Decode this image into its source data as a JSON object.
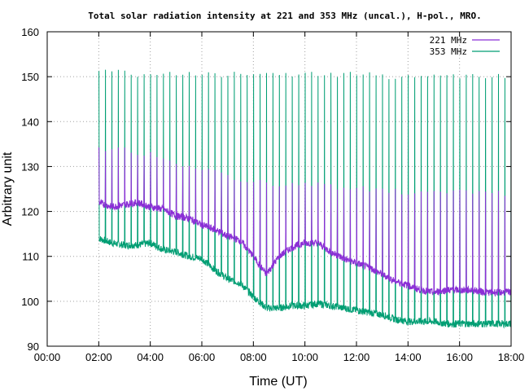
{
  "chart_data": {
    "type": "line",
    "title": "Total solar radiation intensity at 221 and 353 MHz (uncal.), H-pol., MRO.",
    "xlabel": "Time (UT)",
    "ylabel": "Arbitrary unit",
    "xlim": [
      0,
      18
    ],
    "ylim": [
      90,
      160
    ],
    "xticks": [
      0,
      2,
      4,
      6,
      8,
      10,
      12,
      14,
      16,
      18
    ],
    "xtick_labels": [
      "00:00",
      "02:00",
      "04:00",
      "06:00",
      "08:00",
      "10:00",
      "12:00",
      "14:00",
      "16:00",
      "18:00"
    ],
    "yticks": [
      90,
      100,
      110,
      120,
      130,
      140,
      150,
      160
    ],
    "ytick_labels": [
      "90",
      "100",
      "110",
      "120",
      "130",
      "140",
      "150",
      "160"
    ],
    "grid": true,
    "legend_position": "top-right",
    "series": [
      {
        "name": "221 MHz",
        "color": "#8b2fd6",
        "x": [
          2.0,
          2.5,
          3.0,
          3.5,
          4.0,
          4.5,
          5.0,
          5.5,
          6.0,
          6.5,
          7.0,
          7.5,
          8.0,
          8.5,
          9.0,
          9.5,
          10.0,
          10.5,
          11.0,
          11.5,
          12.0,
          12.5,
          13.0,
          13.5,
          14.0,
          14.5,
          15.0,
          15.5,
          16.0,
          16.5,
          17.0,
          17.5,
          18.0
        ],
        "y": [
          122,
          121,
          121.5,
          122,
          121,
          120.5,
          119,
          118.5,
          117,
          116,
          114.5,
          113.5,
          110,
          106,
          110,
          112,
          113,
          113,
          111,
          109.5,
          108.5,
          107.5,
          106,
          104.5,
          103.5,
          102.5,
          102,
          102.5,
          102.5,
          102.5,
          102,
          102,
          102
        ],
        "spike_y": [
          134,
          134,
          134,
          133,
          133,
          132,
          131,
          130,
          129,
          129,
          128,
          127,
          127,
          126,
          126,
          126,
          126,
          126,
          125.5,
          125,
          125,
          125,
          124.5,
          124.5,
          124,
          124,
          124,
          124.5,
          124.5,
          124.5,
          124,
          124,
          124
        ]
      },
      {
        "name": "353 MHz",
        "color": "#009e73",
        "x": [
          2.0,
          2.5,
          3.0,
          3.5,
          4.0,
          4.5,
          5.0,
          5.5,
          6.0,
          6.5,
          7.0,
          7.5,
          8.0,
          8.5,
          9.0,
          9.5,
          10.0,
          10.5,
          11.0,
          11.5,
          12.0,
          12.5,
          13.0,
          13.5,
          14.0,
          14.5,
          15.0,
          15.5,
          16.0,
          16.5,
          17.0,
          17.5,
          18.0
        ],
        "y": [
          114,
          113,
          112.5,
          112.5,
          113,
          111.5,
          111,
          110,
          109.5,
          107,
          105,
          104,
          101,
          98.5,
          98.5,
          99,
          99,
          99.5,
          99,
          98.5,
          98,
          97.5,
          97,
          96,
          95.5,
          95.5,
          95.5,
          95,
          95,
          95,
          95,
          95,
          95
        ],
        "spike_y": [
          151,
          151,
          151,
          150.5,
          150.5,
          150.5,
          150.5,
          150.5,
          150.5,
          150.5,
          150.5,
          150.5,
          150.5,
          150.5,
          150.5,
          150.5,
          150.5,
          150.5,
          150.5,
          150.5,
          150.5,
          150.5,
          150,
          150,
          150,
          150,
          150,
          150,
          150,
          150,
          150,
          150,
          150
        ]
      }
    ]
  }
}
